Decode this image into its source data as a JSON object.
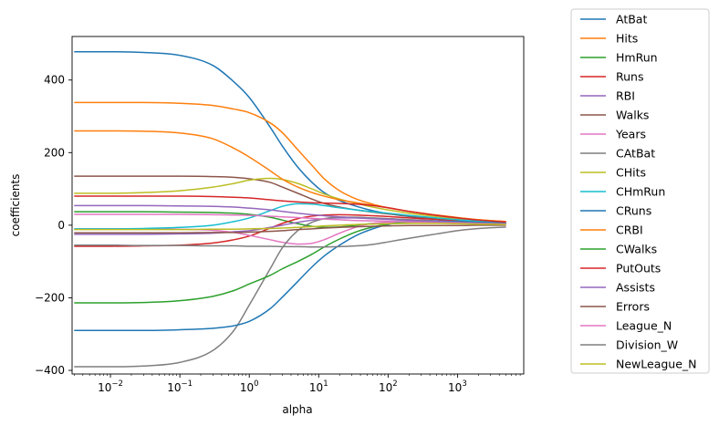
{
  "chart_data": {
    "type": "line",
    "title": "",
    "xlabel": "alpha",
    "ylabel": "coefficients",
    "xscale": "log",
    "xlim": [
      0.0028,
      9000
    ],
    "ylim": [
      -410,
      520
    ],
    "x_ticks": [
      {
        "value": 0.01,
        "mantissa": "10",
        "exp": "−2"
      },
      {
        "value": 0.1,
        "mantissa": "10",
        "exp": "−1"
      },
      {
        "value": 1,
        "mantissa": "10",
        "exp": "0"
      },
      {
        "value": 10,
        "mantissa": "10",
        "exp": "1"
      },
      {
        "value": 100,
        "mantissa": "10",
        "exp": "2"
      },
      {
        "value": 1000,
        "mantissa": "10",
        "exp": "3"
      }
    ],
    "y_ticks": [
      {
        "value": 400,
        "label": "400"
      },
      {
        "value": 200,
        "label": "200"
      },
      {
        "value": 0,
        "label": "0"
      },
      {
        "value": -200,
        "label": "−200"
      },
      {
        "value": -400,
        "label": "−400"
      }
    ],
    "grid": false,
    "legend_position": "outside-right",
    "x": [
      0.003,
      0.01,
      0.03,
      0.1,
      0.3,
      0.6,
      1,
      2,
      3,
      5,
      8,
      12,
      20,
      35,
      60,
      100,
      200,
      500,
      1000,
      2000,
      5000
    ],
    "series": [
      {
        "name": "AtBat",
        "color": "#1f77b4",
        "values": [
          478,
          478,
          476,
          468,
          440,
          395,
          352,
          270,
          218,
          160,
          118,
          90,
          68,
          52,
          40,
          32,
          24,
          18,
          14,
          11,
          8
        ]
      },
      {
        "name": "Hits",
        "color": "#ff7f0e",
        "values": [
          338,
          338,
          338,
          336,
          330,
          320,
          310,
          282,
          255,
          208,
          165,
          128,
          95,
          72,
          58,
          48,
          38,
          28,
          21,
          15,
          10
        ]
      },
      {
        "name": "HmRun",
        "color": "#2ca02c",
        "values": [
          37,
          37,
          37,
          36,
          35,
          33,
          30,
          22,
          14,
          4,
          -3,
          -6,
          -5,
          0,
          5,
          8,
          10,
          9,
          8,
          6,
          4
        ]
      },
      {
        "name": "Runs",
        "color": "#d62728",
        "values": [
          -58,
          -58,
          -57,
          -55,
          -49,
          -40,
          -30,
          -8,
          5,
          18,
          25,
          28,
          29,
          28,
          26,
          24,
          20,
          16,
          12,
          9,
          6
        ]
      },
      {
        "name": "RBI",
        "color": "#9467bd",
        "values": [
          -25,
          -25,
          -25,
          -24,
          -22,
          -18,
          -15,
          -6,
          0,
          8,
          14,
          18,
          20,
          20,
          19,
          18,
          15,
          12,
          10,
          8,
          5
        ]
      },
      {
        "name": "Walks",
        "color": "#8c564b",
        "values": [
          135,
          135,
          135,
          135,
          134,
          132,
          128,
          118,
          105,
          88,
          72,
          60,
          50,
          42,
          36,
          31,
          25,
          19,
          15,
          11,
          8
        ]
      },
      {
        "name": "Years",
        "color": "#e377c2",
        "values": [
          -10,
          -10,
          -10,
          -11,
          -14,
          -20,
          -28,
          -40,
          -47,
          -52,
          -50,
          -40,
          -22,
          -5,
          5,
          8,
          9,
          8,
          7,
          5,
          3
        ]
      },
      {
        "name": "CAtBat",
        "color": "#7f7f7f",
        "values": [
          -390,
          -390,
          -388,
          -378,
          -345,
          -290,
          -220,
          -120,
          -62,
          -15,
          8,
          18,
          22,
          22,
          20,
          18,
          15,
          12,
          9,
          7,
          4
        ]
      },
      {
        "name": "CHits",
        "color": "#bcbd22",
        "values": [
          88,
          88,
          90,
          95,
          105,
          115,
          124,
          129,
          126,
          115,
          100,
          86,
          72,
          60,
          50,
          42,
          33,
          24,
          18,
          13,
          9
        ]
      },
      {
        "name": "CHmRun",
        "color": "#17becf",
        "values": [
          -10,
          -10,
          -9,
          -6,
          0,
          10,
          20,
          40,
          52,
          59,
          58,
          54,
          48,
          42,
          37,
          33,
          27,
          20,
          15,
          11,
          7
        ]
      },
      {
        "name": "CRuns",
        "color": "#1f77b4",
        "values": [
          -290,
          -290,
          -290,
          -288,
          -284,
          -277,
          -265,
          -230,
          -198,
          -155,
          -115,
          -85,
          -55,
          -28,
          -10,
          2,
          10,
          11,
          10,
          8,
          5
        ]
      },
      {
        "name": "CRBI",
        "color": "#ff7f0e",
        "values": [
          260,
          260,
          259,
          254,
          238,
          212,
          188,
          150,
          127,
          105,
          90,
          80,
          70,
          62,
          55,
          48,
          38,
          28,
          21,
          15,
          10
        ]
      },
      {
        "name": "CWalks",
        "color": "#2ca02c",
        "values": [
          -214,
          -214,
          -213,
          -208,
          -196,
          -180,
          -162,
          -138,
          -120,
          -100,
          -80,
          -60,
          -38,
          -18,
          -5,
          3,
          8,
          9,
          8,
          6,
          4
        ]
      },
      {
        "name": "PutOuts",
        "color": "#d62728",
        "values": [
          80,
          80,
          80,
          80,
          79,
          77,
          75,
          70,
          67,
          64,
          62,
          61,
          60,
          58,
          54,
          48,
          38,
          27,
          20,
          14,
          9
        ]
      },
      {
        "name": "Assists",
        "color": "#9467bd",
        "values": [
          54,
          54,
          54,
          53,
          52,
          50,
          47,
          42,
          38,
          33,
          29,
          26,
          23,
          20,
          18,
          16,
          13,
          10,
          8,
          6,
          4
        ]
      },
      {
        "name": "Errors",
        "color": "#8c564b",
        "values": [
          -21,
          -21,
          -21,
          -21,
          -20,
          -20,
          -19,
          -17,
          -15,
          -12,
          -10,
          -8,
          -6,
          -4,
          -3,
          -2,
          -1,
          -1,
          -1,
          0,
          0
        ]
      },
      {
        "name": "League_N",
        "color": "#e377c2",
        "values": [
          30,
          30,
          30,
          30,
          29,
          28,
          27,
          25,
          23,
          21,
          19,
          17,
          15,
          13,
          12,
          11,
          9,
          7,
          6,
          4,
          3
        ]
      },
      {
        "name": "Division_W",
        "color": "#7f7f7f",
        "values": [
          -55,
          -55,
          -56,
          -56,
          -57,
          -57,
          -58,
          -58,
          -59,
          -59,
          -60,
          -60,
          -59,
          -57,
          -53,
          -46,
          -36,
          -24,
          -15,
          -9,
          -5
        ]
      },
      {
        "name": "NewLeague_N",
        "color": "#bcbd22",
        "values": [
          -12,
          -12,
          -12,
          -12,
          -11,
          -11,
          -10,
          -9,
          -8,
          -6,
          -4,
          -2,
          0,
          2,
          3,
          4,
          5,
          5,
          4,
          3,
          2
        ]
      }
    ]
  }
}
